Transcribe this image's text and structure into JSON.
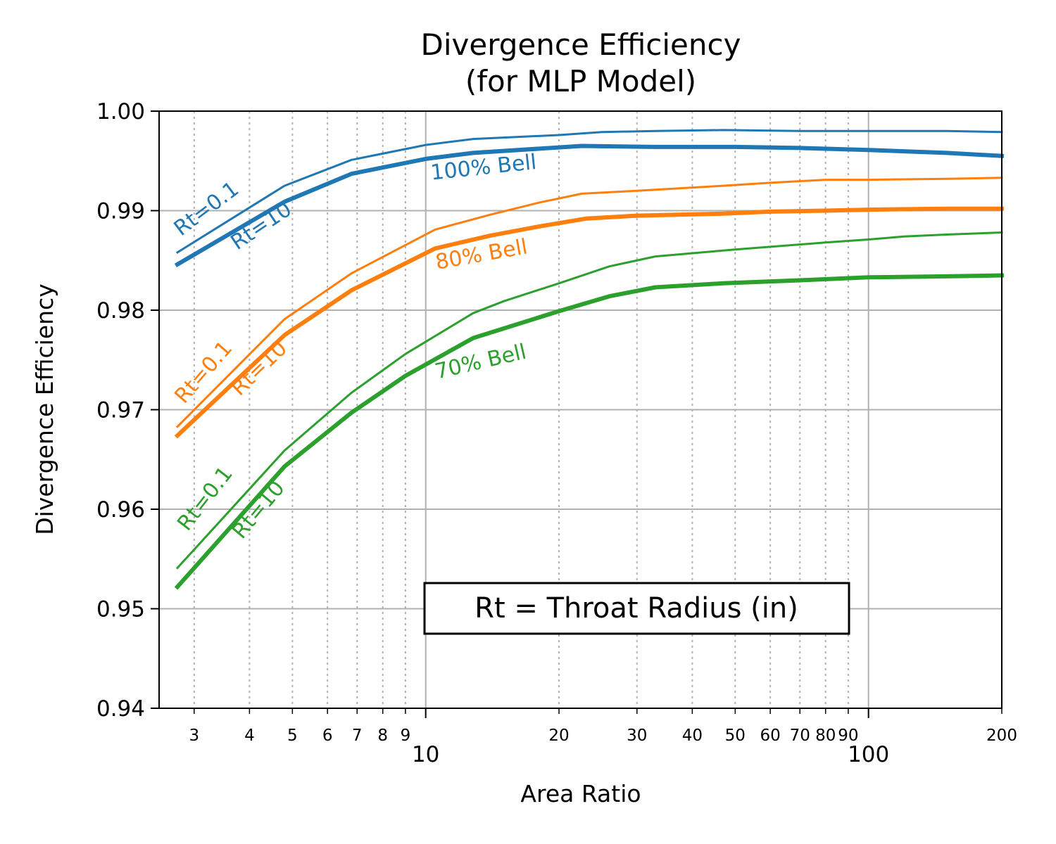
{
  "chart_data": {
    "type": "line",
    "title": "Divergence Efficiency",
    "subtitle": "(for MLP Model)",
    "xlabel": "Area Ratio",
    "ylabel": "Divergence Efficiency",
    "xscale": "log",
    "xlim": [
      2.5,
      200
    ],
    "ylim": [
      0.94,
      1.0
    ],
    "grid": "on",
    "y_ticks": [
      "0.94",
      "0.95",
      "0.96",
      "0.97",
      "0.98",
      "0.99",
      "1.00"
    ],
    "y_tick_values": [
      0.94,
      0.95,
      0.96,
      0.97,
      0.98,
      0.99,
      1.0
    ],
    "x_major_ticks": [
      "10",
      "100"
    ],
    "x_major_tick_values": [
      10,
      100
    ],
    "x_minor_ticks": [
      "3",
      "4",
      "5",
      "6",
      "7",
      "8",
      "9",
      "20",
      "30",
      "40",
      "50",
      "60",
      "70",
      "80",
      "90",
      "200"
    ],
    "x_minor_tick_values": [
      3,
      4,
      5,
      6,
      7,
      8,
      9,
      20,
      30,
      40,
      50,
      60,
      70,
      80,
      90,
      200
    ],
    "annotation": "Rt = Throat Radius (in)",
    "series": [
      {
        "color": "#1f77b4",
        "width": "thin",
        "x": [
          2.75,
          4.8,
          6.8,
          10,
          12.8,
          20,
          25,
          33,
          47,
          70,
          100,
          150,
          200
        ],
        "y": [
          0.9858,
          0.9925,
          0.9951,
          0.9966,
          0.9972,
          0.9976,
          0.9979,
          0.998,
          0.9981,
          0.998,
          0.998,
          0.998,
          0.9979
        ]
      },
      {
        "color": "#1f77b4",
        "width": "thick",
        "x": [
          2.75,
          4.8,
          6.8,
          10,
          12.8,
          22.5,
          33,
          50,
          70,
          100,
          150,
          200
        ],
        "y": [
          0.9846,
          0.9909,
          0.9937,
          0.9952,
          0.9958,
          0.9965,
          0.9964,
          0.9964,
          0.9963,
          0.9961,
          0.9958,
          0.9955
        ]
      },
      {
        "color": "#ff7f0e",
        "width": "thin",
        "x": [
          2.75,
          4.8,
          6.8,
          10.5,
          14,
          18,
          22.5,
          30,
          47,
          60,
          80,
          100,
          150,
          200
        ],
        "y": [
          0.9683,
          0.9791,
          0.9837,
          0.9881,
          0.9896,
          0.9908,
          0.9917,
          0.992,
          0.9925,
          0.9928,
          0.9931,
          0.9931,
          0.9932,
          0.9933
        ]
      },
      {
        "color": "#ff7f0e",
        "width": "thick",
        "x": [
          2.75,
          4.8,
          6.8,
          10.5,
          14,
          18,
          23,
          30,
          47,
          60,
          80,
          100,
          150,
          200
        ],
        "y": [
          0.9674,
          0.9775,
          0.982,
          0.9862,
          0.9875,
          0.9884,
          0.9892,
          0.9895,
          0.9897,
          0.9899,
          0.99,
          0.9901,
          0.9902,
          0.9902
        ]
      },
      {
        "color": "#2ca02c",
        "width": "thin",
        "x": [
          2.75,
          4.8,
          6.8,
          9,
          12.8,
          15,
          20,
          26,
          33,
          50,
          80,
          100,
          120,
          150,
          200
        ],
        "y": [
          0.9541,
          0.9659,
          0.9717,
          0.9756,
          0.9797,
          0.9809,
          0.9827,
          0.9844,
          0.9854,
          0.9861,
          0.9868,
          0.9871,
          0.9874,
          0.9876,
          0.9878
        ]
      },
      {
        "color": "#2ca02c",
        "width": "thick",
        "x": [
          2.75,
          4.8,
          6.8,
          9,
          12.8,
          20,
          26,
          33,
          47,
          70,
          100,
          150,
          200
        ],
        "y": [
          0.9522,
          0.9643,
          0.9697,
          0.9734,
          0.9772,
          0.9799,
          0.9814,
          0.9823,
          0.9827,
          0.983,
          0.9833,
          0.9834,
          0.9835
        ]
      }
    ],
    "curve_labels": [
      {
        "text": "Rt=0.1",
        "color": "#1f77b4",
        "x": 2.8,
        "y": 0.9874,
        "angle": -37
      },
      {
        "text": "Rt=10",
        "color": "#1f77b4",
        "x": 3.75,
        "y": 0.986,
        "angle": -34
      },
      {
        "text": "100% Bell",
        "color": "#1f77b4",
        "x": 10.3,
        "y": 0.9931,
        "angle": -6
      },
      {
        "text": "Rt=0.1",
        "color": "#ff7f0e",
        "x": 2.85,
        "y": 0.9705,
        "angle": -49
      },
      {
        "text": "Rt=10",
        "color": "#ff7f0e",
        "x": 3.8,
        "y": 0.9713,
        "angle": -44
      },
      {
        "text": "80% Bell",
        "color": "#ff7f0e",
        "x": 10.6,
        "y": 0.9841,
        "angle": -10
      },
      {
        "text": "Rt=0.1",
        "color": "#2ca02c",
        "x": 2.9,
        "y": 0.9577,
        "angle": -52
      },
      {
        "text": "Rt=10",
        "color": "#2ca02c",
        "x": 3.85,
        "y": 0.9569,
        "angle": -50
      },
      {
        "text": "70% Bell",
        "color": "#2ca02c",
        "x": 10.6,
        "y": 0.9731,
        "angle": -13
      }
    ]
  }
}
